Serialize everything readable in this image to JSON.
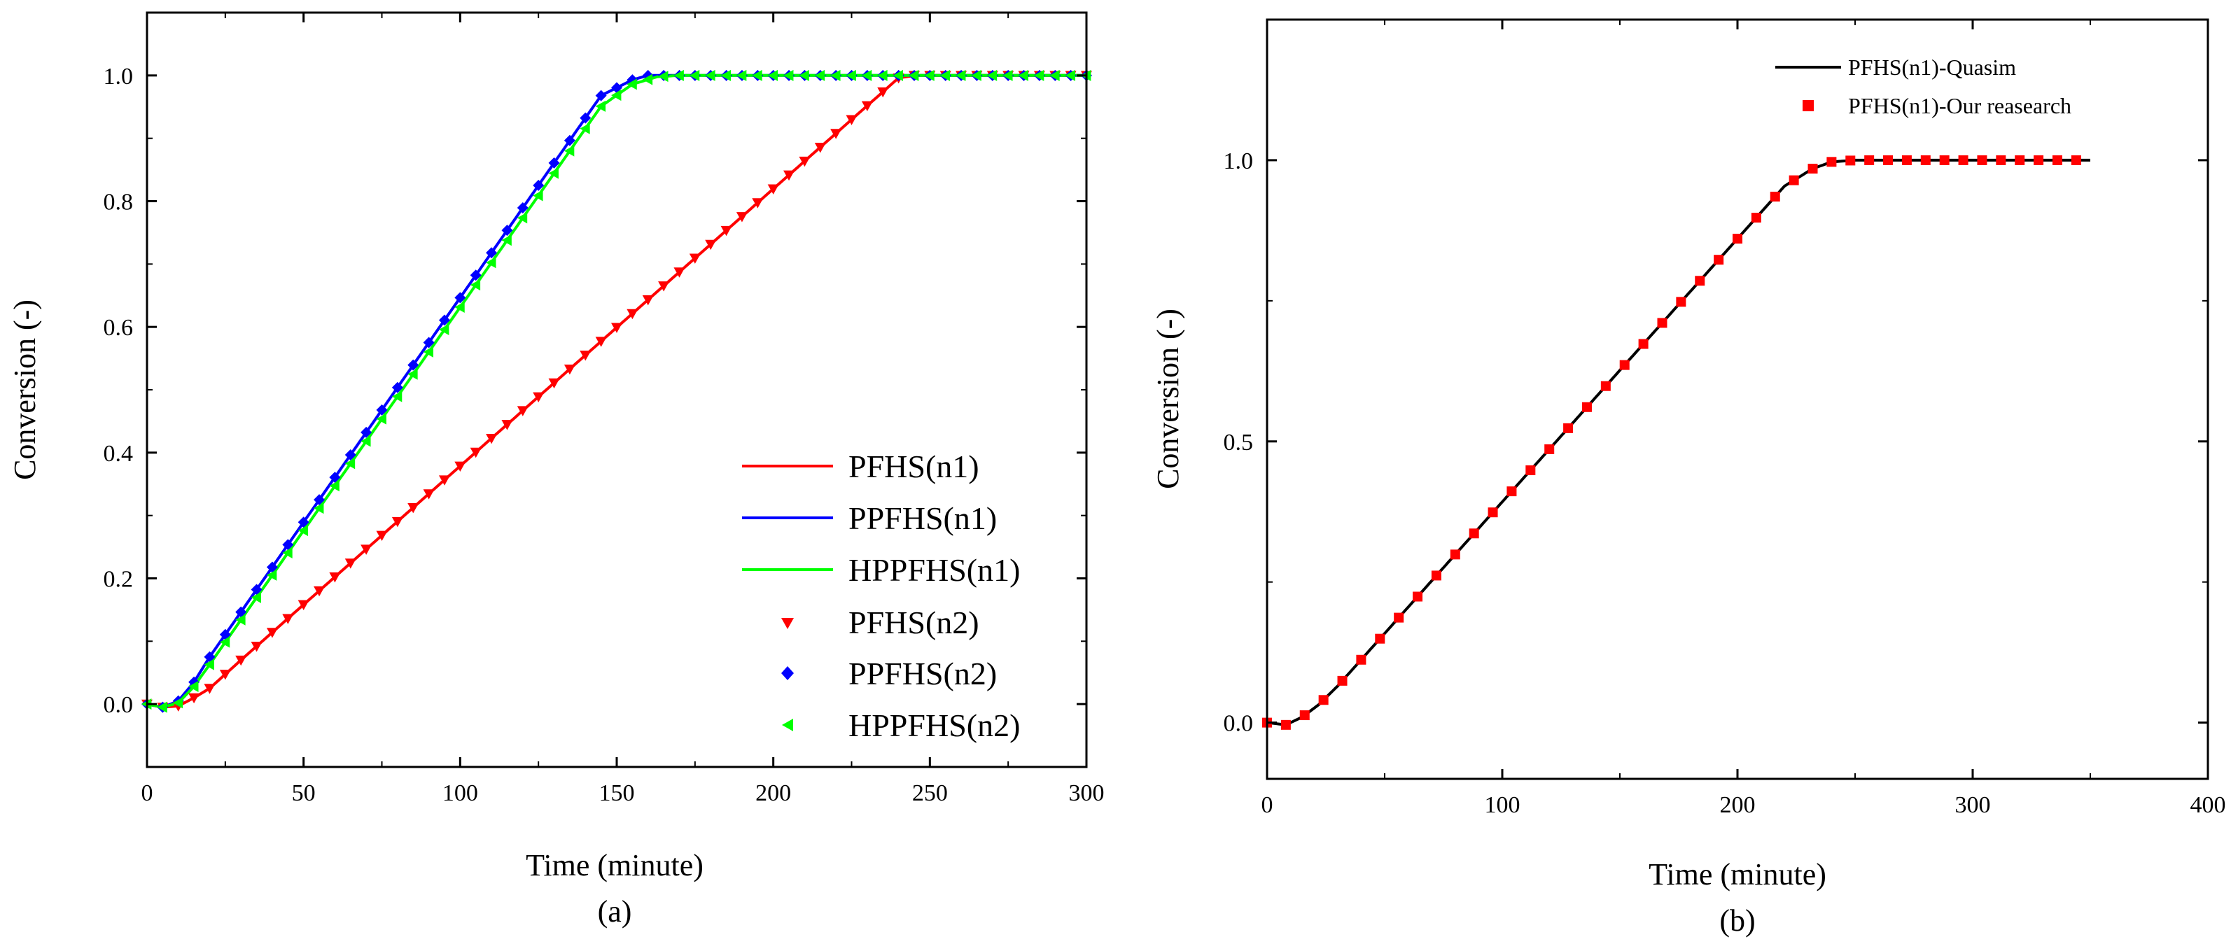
{
  "figure": {
    "panel_a_caption": "(a)",
    "panel_b_caption": "(b)"
  },
  "chart_data": [
    {
      "type": "line",
      "title": "",
      "xlabel": "Time (minute)",
      "ylabel": "Conversion (-)",
      "xlim": [
        0,
        300
      ],
      "ylim": [
        -0.1,
        1.1
      ],
      "xticks": [
        0,
        50,
        100,
        150,
        200,
        250,
        300
      ],
      "yticks": [
        0.0,
        0.2,
        0.4,
        0.6,
        0.8,
        1.0
      ],
      "xtick_labels": [
        "0",
        "50",
        "100",
        "150",
        "200",
        "250",
        "300"
      ],
      "ytick_labels": [
        "0.0",
        "0.2",
        "0.4",
        "0.6",
        "0.8",
        "1.0"
      ],
      "legend_position": "bottom-right",
      "grid": false,
      "series": [
        {
          "name": "PFHS(n1)",
          "kind": "line",
          "color": "#ff0000",
          "x": [
            0,
            5,
            10,
            15,
            20,
            30,
            240,
            245,
            250,
            300
          ],
          "y": [
            0,
            -0.005,
            -0.003,
            0.01,
            0.025,
            0.07,
            0.996,
            1.0,
            1.0,
            1.0
          ]
        },
        {
          "name": "PPFHS(n1)",
          "kind": "line",
          "color": "#0000ff",
          "x": [
            0,
            5,
            10,
            15,
            20,
            145,
            155,
            160,
            300
          ],
          "y": [
            0,
            -0.005,
            0.005,
            0.035,
            0.075,
            0.968,
            0.993,
            1.0,
            1.0
          ]
        },
        {
          "name": "HPPFHS(n1)",
          "kind": "line",
          "color": "#00ff00",
          "x": [
            0,
            5,
            10,
            15,
            20,
            145,
            155,
            163,
            170,
            300
          ],
          "y": [
            0,
            -0.005,
            0.002,
            0.028,
            0.063,
            0.951,
            0.986,
            0.998,
            1.0,
            1.0
          ]
        },
        {
          "name": "PFHS(n2)",
          "kind": "marker",
          "marker": "triangle-down",
          "color": "#ff0000",
          "x": [
            0,
            5,
            10,
            15,
            20,
            30,
            240,
            245,
            250,
            300
          ],
          "y": [
            0,
            -0.005,
            -0.003,
            0.01,
            0.025,
            0.07,
            0.996,
            1.0,
            1.0,
            1.0
          ]
        },
        {
          "name": "PPFHS(n2)",
          "kind": "marker",
          "marker": "diamond",
          "color": "#0000ff",
          "x": [
            0,
            5,
            10,
            15,
            20,
            145,
            155,
            160,
            300
          ],
          "y": [
            0,
            -0.005,
            0.005,
            0.035,
            0.075,
            0.968,
            0.993,
            1.0,
            1.0
          ]
        },
        {
          "name": "HPPFHS(n2)",
          "kind": "marker",
          "marker": "triangle-left",
          "color": "#00ff00",
          "x": [
            0,
            5,
            10,
            15,
            20,
            145,
            155,
            163,
            170,
            300
          ],
          "y": [
            0,
            -0.005,
            0.002,
            0.028,
            0.063,
            0.951,
            0.986,
            0.998,
            1.0,
            1.0
          ]
        }
      ]
    },
    {
      "type": "line",
      "title": "",
      "xlabel": "Time (minute)",
      "ylabel": "Conversion (-)",
      "xlim": [
        0,
        400
      ],
      "ylim": [
        -0.1,
        1.25
      ],
      "xticks": [
        0,
        100,
        200,
        300,
        400
      ],
      "yticks": [
        0.0,
        0.5,
        1.0
      ],
      "xtick_labels": [
        "0",
        "100",
        "200",
        "300",
        "400"
      ],
      "ytick_labels": [
        "0.0",
        "0.5",
        "1.0"
      ],
      "legend_position": "top-right",
      "grid": false,
      "series": [
        {
          "name": "PFHS(n1)-Quasim",
          "kind": "line",
          "color": "#000000",
          "x": [
            0,
            8,
            15,
            22,
            30,
            220,
            232,
            240,
            250,
            350
          ],
          "y": [
            0,
            -0.004,
            0.01,
            0.032,
            0.065,
            0.954,
            0.985,
            0.997,
            1.0,
            1.0
          ]
        },
        {
          "name": "PFHS(n1)-Our reasearch",
          "kind": "marker",
          "marker": "square",
          "color": "#ff0000",
          "x": [
            0,
            8,
            15,
            22,
            30,
            220,
            232,
            240,
            250,
            350
          ],
          "y": [
            0,
            -0.004,
            0.01,
            0.032,
            0.065,
            0.954,
            0.985,
            0.997,
            1.0,
            1.0
          ]
        }
      ]
    }
  ]
}
